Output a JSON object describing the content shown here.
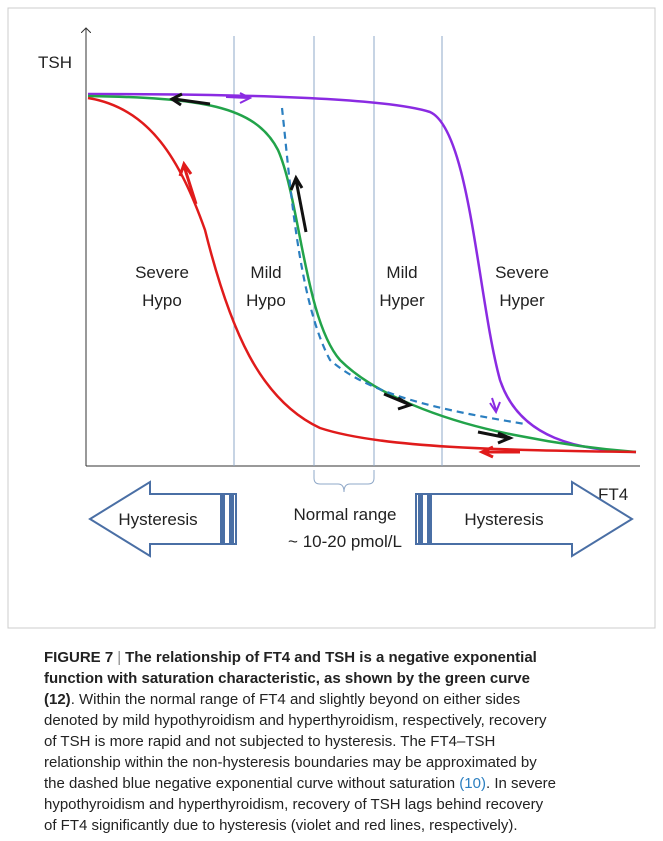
{
  "figure": {
    "y_axis_label": "TSH",
    "x_axis_label": "FT4",
    "regions": [
      {
        "line1": "Severe",
        "line2": "Hypo"
      },
      {
        "line1": "Mild",
        "line2": "Hypo"
      },
      {
        "line1": "Mild",
        "line2": "Hyper"
      },
      {
        "line1": "Severe",
        "line2": "Hyper"
      }
    ],
    "left_arrow": "Hysteresis",
    "right_arrow": "Hysteresis",
    "normal_range": "Normal range",
    "normal_range_values": "~ 10-20 pmol/L"
  },
  "caption": {
    "label": "FIGURE 7",
    "separator": "|",
    "title_line1": "The relationship of FT4 and TSH is a negative exponential",
    "title_line2": "function with saturation characteristic, as shown by the green curve",
    "ref1": "(12)",
    "line3_rest": ". Within the normal range of FT4 and slightly beyond on either sides",
    "line4": "denoted by mild hypothyroidism and hyperthyroidism, respectively, recovery",
    "line5": "of TSH is more rapid and not subjected to hysteresis. The FT4–TSH",
    "line6": "relationship within the non-hysteresis boundaries may be approximated by",
    "line7_before": "the dashed blue negative exponential curve without saturation ",
    "ref2": "(10)",
    "line7_after": ". In severe",
    "line8": "hypothyroidism and hyperthyroidism, recovery of TSH lags behind recovery",
    "line9": "of FT4 significantly due to hysteresis (violet and red lines, respectively)."
  }
}
